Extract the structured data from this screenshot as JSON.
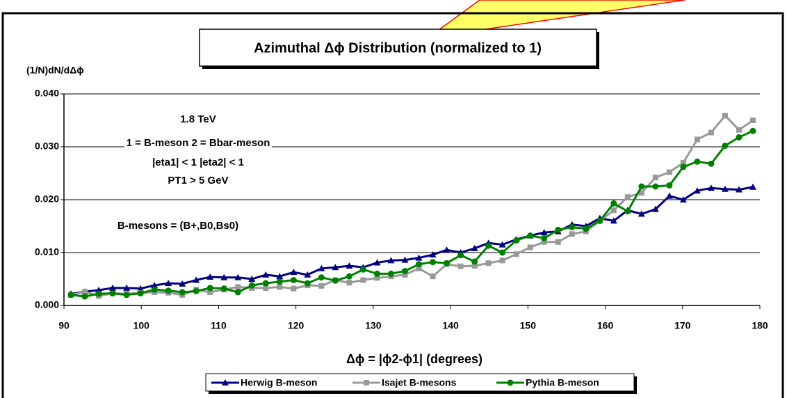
{
  "chart_data": {
    "type": "line",
    "title": "Azimuthal Δϕ Distribution (normalized to 1)",
    "y_label": "(1/N)dN/dΔϕ",
    "x_label": "Δϕ = |ϕ2-ϕ1|  (degrees)",
    "annotations": [
      "1.8 TeV",
      "1 = B-meson 2 = Bbar-meson",
      "|eta1| < 1 |eta2| < 1",
      "PT1 > 5 GeV",
      "B-mesons = (B+,B0,Bs0)"
    ],
    "x": [
      90.9,
      92.7,
      94.5,
      96.3,
      98.1,
      99.9,
      101.7,
      103.5,
      105.3,
      107.1,
      108.9,
      110.7,
      112.5,
      114.3,
      116.1,
      117.9,
      119.7,
      121.5,
      123.3,
      125.1,
      126.9,
      128.7,
      130.5,
      132.3,
      134.1,
      135.9,
      137.7,
      139.5,
      141.3,
      143.1,
      144.9,
      146.7,
      148.5,
      150.3,
      152.1,
      153.9,
      155.7,
      157.5,
      159.3,
      161.1,
      162.9,
      164.7,
      166.5,
      168.3,
      170.1,
      171.9,
      173.7,
      175.5,
      177.3,
      179.1
    ],
    "series": [
      {
        "name": "Herwig B-meson",
        "color": "#000080",
        "marker": "triangle",
        "values": [
          0.0022,
          0.0026,
          0.0029,
          0.0033,
          0.0033,
          0.0032,
          0.0038,
          0.0042,
          0.0041,
          0.0048,
          0.0054,
          0.0053,
          0.0053,
          0.005,
          0.0058,
          0.0055,
          0.0063,
          0.0058,
          0.007,
          0.0072,
          0.0075,
          0.0072,
          0.0081,
          0.0085,
          0.0086,
          0.009,
          0.0096,
          0.0105,
          0.01,
          0.0108,
          0.0118,
          0.0115,
          0.0125,
          0.0132,
          0.0138,
          0.014,
          0.0153,
          0.015,
          0.0165,
          0.016,
          0.018,
          0.0173,
          0.0182,
          0.0207,
          0.02,
          0.0217,
          0.0222,
          0.022,
          0.0219,
          0.0224
        ]
      },
      {
        "name": "Isajet B-mesons",
        "color": "#999999",
        "marker": "square",
        "values": [
          0.002,
          0.0026,
          0.0018,
          0.0023,
          0.0022,
          0.0024,
          0.0025,
          0.0024,
          0.002,
          0.003,
          0.0025,
          0.003,
          0.0035,
          0.0033,
          0.0033,
          0.0035,
          0.0032,
          0.0038,
          0.0037,
          0.0048,
          0.0043,
          0.0048,
          0.0052,
          0.0055,
          0.0058,
          0.007,
          0.0055,
          0.0078,
          0.0074,
          0.0075,
          0.008,
          0.0085,
          0.0097,
          0.011,
          0.012,
          0.012,
          0.0135,
          0.014,
          0.016,
          0.018,
          0.0205,
          0.0213,
          0.0242,
          0.0252,
          0.027,
          0.0314,
          0.0327,
          0.0359,
          0.0332,
          0.035
        ]
      },
      {
        "name": "Pythia B-meson",
        "color": "#008000",
        "marker": "circle",
        "values": [
          0.002,
          0.0017,
          0.0022,
          0.0023,
          0.002,
          0.0023,
          0.003,
          0.0028,
          0.0025,
          0.0027,
          0.0033,
          0.0032,
          0.0025,
          0.0038,
          0.0042,
          0.0045,
          0.0048,
          0.0042,
          0.0053,
          0.0047,
          0.0055,
          0.0068,
          0.006,
          0.006,
          0.0065,
          0.0078,
          0.0082,
          0.008,
          0.0095,
          0.0083,
          0.0113,
          0.01,
          0.0123,
          0.0132,
          0.0127,
          0.0143,
          0.0148,
          0.0145,
          0.016,
          0.0193,
          0.0178,
          0.0225,
          0.0225,
          0.0227,
          0.0262,
          0.0272,
          0.0268,
          0.0302,
          0.0318,
          0.033
        ]
      }
    ],
    "xlim": [
      90,
      180
    ],
    "xticks": [
      90,
      100,
      110,
      120,
      130,
      140,
      150,
      160,
      170,
      180
    ],
    "ylim": [
      0,
      0.04
    ],
    "yticks": [
      {
        "value": 0,
        "label": "0.000"
      },
      {
        "value": 0.01,
        "label": "0.010"
      },
      {
        "value": 0.02,
        "label": "0.020"
      },
      {
        "value": 0.03,
        "label": "0.030"
      },
      {
        "value": 0.04,
        "label": "0.040"
      }
    ],
    "grid": true,
    "legend": "bottom"
  }
}
